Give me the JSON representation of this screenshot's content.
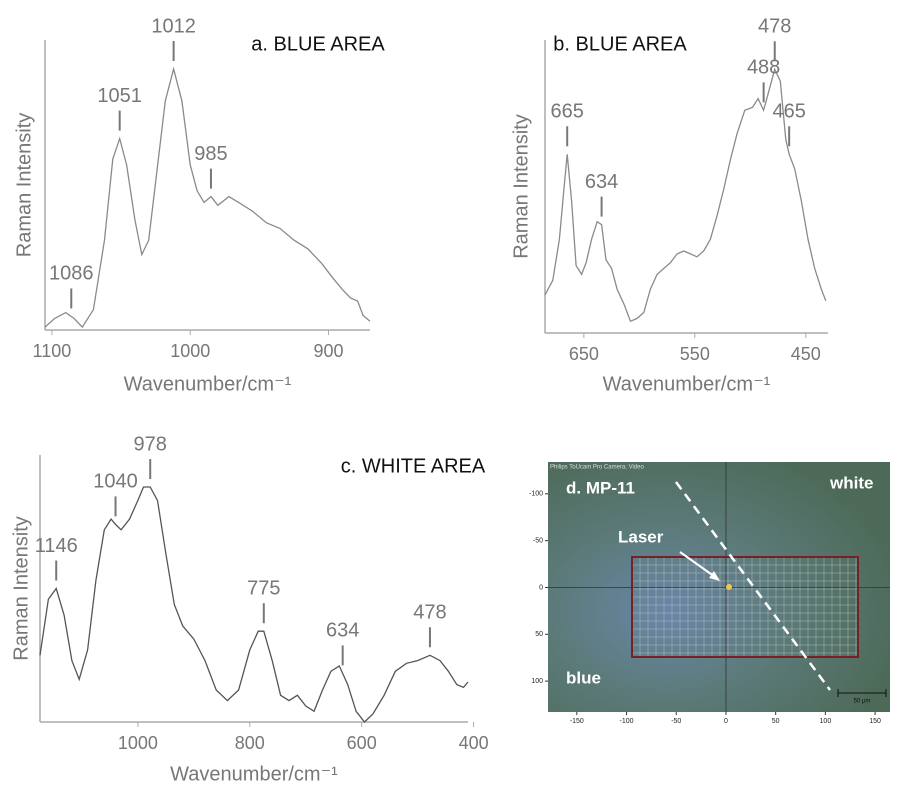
{
  "chart_data": [
    {
      "type": "line",
      "title": "a. BLUE AREA",
      "xlabel": "Wavenumber/cm⁻¹",
      "ylabel": "Raman Intensity",
      "color": "#8a8a8a",
      "x": [
        1105,
        1098,
        1090,
        1084,
        1078,
        1070,
        1062,
        1056,
        1051,
        1046,
        1040,
        1035,
        1030,
        1024,
        1018,
        1012,
        1006,
        1000,
        995,
        990,
        985,
        980,
        972,
        965,
        955,
        945,
        935,
        925,
        915,
        905,
        897,
        890,
        884,
        879,
        875,
        870
      ],
      "values": [
        1,
        4,
        6,
        4,
        1,
        7,
        31,
        59,
        66,
        57,
        38,
        26,
        31,
        55,
        79,
        90,
        79,
        57,
        48,
        44,
        46,
        43,
        46,
        44,
        41,
        37,
        35,
        31,
        28,
        23,
        18,
        14,
        11,
        10,
        5,
        3
      ],
      "xlim": [
        1105,
        870
      ],
      "ylim": [
        0,
        100
      ],
      "xticks": [
        1100,
        1000,
        900
      ],
      "peaks": [
        1086,
        1051,
        1012,
        985
      ]
    },
    {
      "type": "line",
      "title": "b. BLUE AREA",
      "xlabel": "Wavenumber/cm⁻¹",
      "ylabel": "Raman Intensity",
      "color": "#8a8a8a",
      "x": [
        685,
        678,
        672,
        668,
        665,
        661,
        657,
        652,
        648,
        643,
        638,
        634,
        630,
        625,
        620,
        614,
        608,
        602,
        596,
        590,
        584,
        578,
        572,
        566,
        560,
        554,
        548,
        542,
        536,
        530,
        524,
        518,
        512,
        505,
        498,
        493,
        488,
        483,
        478,
        473,
        468,
        465,
        460,
        454,
        448,
        442,
        436,
        432
      ],
      "values": [
        13,
        18,
        32,
        49,
        61,
        45,
        23,
        20,
        24,
        32,
        38,
        37,
        25,
        22,
        15,
        10,
        4,
        5,
        7,
        15,
        20,
        22,
        24,
        27,
        28,
        27,
        26,
        28,
        32,
        40,
        49,
        59,
        68,
        76,
        77,
        80,
        76,
        83,
        90,
        86,
        66,
        61,
        56,
        45,
        32,
        22,
        15,
        11
      ],
      "xlim": [
        685,
        430
      ],
      "ylim": [
        0,
        100
      ],
      "xticks": [
        650,
        550,
        450
      ],
      "peaks": [
        665,
        634,
        488,
        478,
        465
      ]
    },
    {
      "type": "line",
      "title": "c. WHITE AREA",
      "xlabel": "Wavenumber/cm⁻¹",
      "ylabel": "Raman Intensity",
      "color": "#555555",
      "x": [
        1175,
        1160,
        1146,
        1132,
        1118,
        1105,
        1090,
        1075,
        1060,
        1048,
        1040,
        1030,
        1015,
        1000,
        990,
        978,
        965,
        950,
        935,
        920,
        900,
        880,
        860,
        840,
        820,
        800,
        785,
        775,
        760,
        745,
        730,
        715,
        700,
        685,
        670,
        655,
        640,
        625,
        610,
        595,
        580,
        560,
        540,
        520,
        500,
        478,
        460,
        445,
        430,
        418,
        410
      ],
      "values": [
        25,
        46,
        50,
        40,
        23,
        16,
        27,
        53,
        72,
        76,
        74,
        72,
        76,
        83,
        88,
        88,
        83,
        63,
        44,
        36,
        31,
        23,
        12,
        8,
        12,
        27,
        34,
        34,
        23,
        10,
        8,
        10,
        6,
        4,
        12,
        19,
        21,
        14,
        4,
        0,
        3,
        10,
        19,
        22,
        23,
        25,
        23,
        19,
        14,
        13,
        15
      ],
      "xlim": [
        1175,
        410
      ],
      "ylim": [
        0,
        100
      ],
      "xticks": [
        1000,
        800,
        600,
        400
      ],
      "peaks": [
        1146,
        1040,
        978,
        775,
        634,
        478
      ]
    }
  ],
  "micrograph": {
    "title": "d. MP-11",
    "header": "Philips ToUcam Pro Camera; Video",
    "labels": [
      "white",
      "Laser",
      "blue"
    ],
    "xlim": [
      -179,
      165
    ],
    "ylim": [
      -134,
      133
    ],
    "xticks": [
      -150,
      -100,
      -50,
      0,
      50,
      100,
      150
    ],
    "yticks": [
      -100,
      -50,
      0,
      50,
      100
    ],
    "scale_bar": "50 µm"
  }
}
